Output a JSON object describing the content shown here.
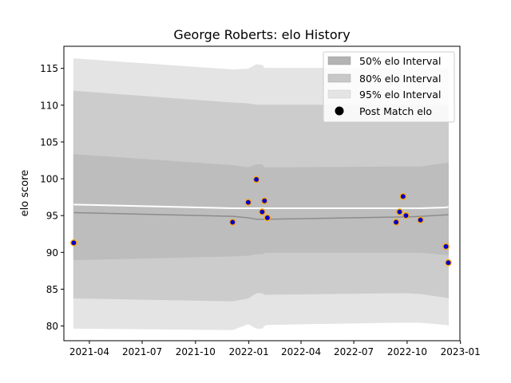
{
  "chart_data": {
    "type": "line",
    "title": "George Roberts: elo History",
    "xlabel": "",
    "ylabel": "elo score",
    "xlim": [
      "2021-02-16",
      "2022-12-31"
    ],
    "ylim": [
      78,
      118
    ],
    "x_ticks": [
      "2021-04-01",
      "2021-07-01",
      "2021-10-01",
      "2022-01-01",
      "2022-04-01",
      "2022-07-01",
      "2022-10-01",
      "2023-01-01"
    ],
    "x_tick_labels": [
      "2021-04",
      "2021-07",
      "2021-10",
      "2022-01",
      "2022-04",
      "2022-07",
      "2022-10",
      "2023-01"
    ],
    "y_ticks": [
      80,
      85,
      90,
      95,
      100,
      105,
      110,
      115
    ],
    "y_tick_labels": [
      "80",
      "85",
      "90",
      "95",
      "100",
      "105",
      "110",
      "115"
    ],
    "legend_position": "top-right",
    "grid": false,
    "dates": [
      "2021-03-05",
      "2021-12-04",
      "2021-12-31",
      "2022-01-14",
      "2022-01-24",
      "2022-01-28",
      "2022-02-02",
      "2022-09-12",
      "2022-09-18",
      "2022-09-24",
      "2022-09-29",
      "2022-10-24",
      "2022-12-07",
      "2022-12-11"
    ],
    "series": [
      {
        "name": "95% elo Interval",
        "kind": "band",
        "color": "#e4e4e4",
        "lower": [
          79.7,
          79.5,
          80.3,
          79.7,
          79.7,
          80.1,
          80.2,
          80.5,
          80.5,
          80.5,
          80.5,
          80.5,
          80.2,
          80.1
        ],
        "upper": [
          116.3,
          114.8,
          114.9,
          115.5,
          115.4,
          115.0,
          115.0,
          115.0,
          115.0,
          115.0,
          115.0,
          115.0,
          115.0,
          115.0
        ]
      },
      {
        "name": "80% elo Interval",
        "kind": "band",
        "color": "#cccccc",
        "lower": [
          83.8,
          83.4,
          83.8,
          84.5,
          84.5,
          84.3,
          84.3,
          84.5,
          84.5,
          84.5,
          84.5,
          84.4,
          83.9,
          83.8
        ],
        "upper": [
          111.9,
          110.3,
          110.2,
          110.0,
          110.0,
          110.0,
          110.0,
          110.0,
          110.0,
          110.0,
          110.0,
          110.0,
          110.0,
          110.0
        ]
      },
      {
        "name": "50% elo Interval",
        "kind": "band",
        "color": "#bdbdbd",
        "lower": [
          89.0,
          89.5,
          89.6,
          89.8,
          89.8,
          90.0,
          90.0,
          90.0,
          90.0,
          90.0,
          90.0,
          90.0,
          89.7,
          89.7
        ],
        "upper": [
          103.3,
          101.8,
          101.5,
          101.9,
          101.9,
          101.5,
          101.5,
          101.6,
          101.6,
          101.6,
          101.6,
          101.6,
          102.1,
          102.1
        ]
      },
      {
        "name": "",
        "kind": "line",
        "color": "#8c8c8c",
        "values": [
          95.4,
          94.9,
          94.7,
          94.5,
          94.5,
          94.5,
          94.5,
          94.8,
          94.8,
          94.8,
          94.8,
          94.9,
          95.1,
          95.1
        ]
      },
      {
        "name": "",
        "kind": "line",
        "color": "#ffffff",
        "values": [
          96.5,
          96.0,
          96.0,
          96.0,
          96.0,
          96.0,
          96.0,
          96.0,
          96.0,
          96.0,
          96.0,
          96.0,
          96.1,
          96.2
        ]
      },
      {
        "name": "Post Match elo",
        "kind": "scatter",
        "color": "#0000cd",
        "edge": "#ffa500",
        "values": [
          91.3,
          94.1,
          96.8,
          99.9,
          95.5,
          97.0,
          94.7,
          94.1,
          95.5,
          97.6,
          95.0,
          94.4,
          90.8,
          88.6
        ]
      }
    ]
  }
}
